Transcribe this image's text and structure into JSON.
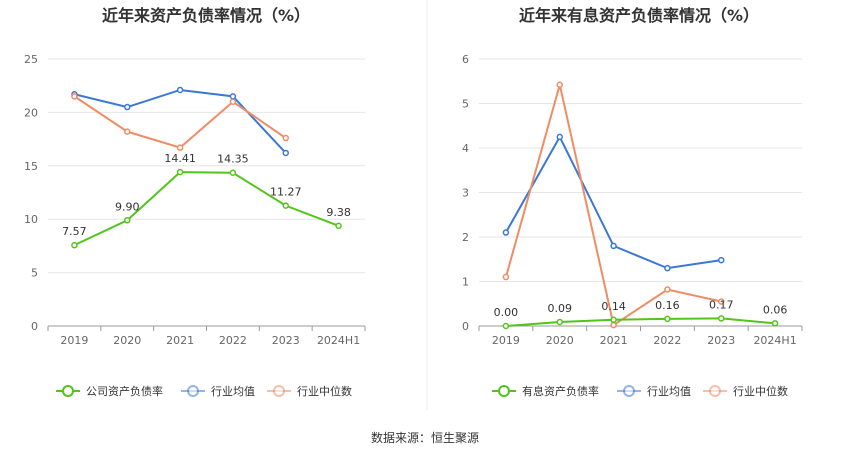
{
  "source": "数据来源：恒生聚源",
  "colors": {
    "company": "#52c41a",
    "avg": "#3a78d8",
    "median": "#f08b63",
    "grid": "#e6e6e6",
    "axis": "#999999"
  },
  "chart_data": [
    {
      "type": "line",
      "title": "近年来资产负债率情况（%）",
      "categories": [
        "2019",
        "2020",
        "2021",
        "2022",
        "2023",
        "2024H1"
      ],
      "ylim": [
        0,
        25
      ],
      "yticks": [
        "0",
        "5",
        "10",
        "15",
        "20",
        "25"
      ],
      "grid": true,
      "legend_position": "bottom",
      "series": [
        {
          "name": "公司资产负债率",
          "values": [
            7.57,
            9.9,
            14.41,
            14.35,
            11.27,
            9.38
          ],
          "labels": [
            "7.57",
            "9.90",
            "14.41",
            "14.35",
            "11.27",
            "9.38"
          ]
        },
        {
          "name": "行业均值",
          "values": [
            21.7,
            20.5,
            22.1,
            21.5,
            16.2,
            null
          ]
        },
        {
          "name": "行业中位数",
          "values": [
            21.5,
            18.2,
            16.7,
            21.0,
            17.6,
            null
          ]
        }
      ]
    },
    {
      "type": "line",
      "title": "近年来有息资产负债率情况（%）",
      "categories": [
        "2019",
        "2020",
        "2021",
        "2022",
        "2023",
        "2024H1"
      ],
      "ylim": [
        0,
        6
      ],
      "yticks": [
        "0",
        "1",
        "2",
        "3",
        "4",
        "5",
        "6"
      ],
      "grid": true,
      "legend_position": "bottom",
      "series": [
        {
          "name": "有息资产负债率",
          "values": [
            0.0,
            0.09,
            0.14,
            0.16,
            0.17,
            0.06
          ],
          "labels": [
            "0.00",
            "0.09",
            "0.14",
            "0.16",
            "0.17",
            "0.06"
          ]
        },
        {
          "name": "行业均值",
          "values": [
            2.1,
            4.25,
            1.8,
            1.3,
            1.48,
            null
          ]
        },
        {
          "name": "行业中位数",
          "values": [
            1.1,
            5.42,
            0.02,
            0.82,
            0.55,
            null
          ]
        }
      ]
    }
  ]
}
